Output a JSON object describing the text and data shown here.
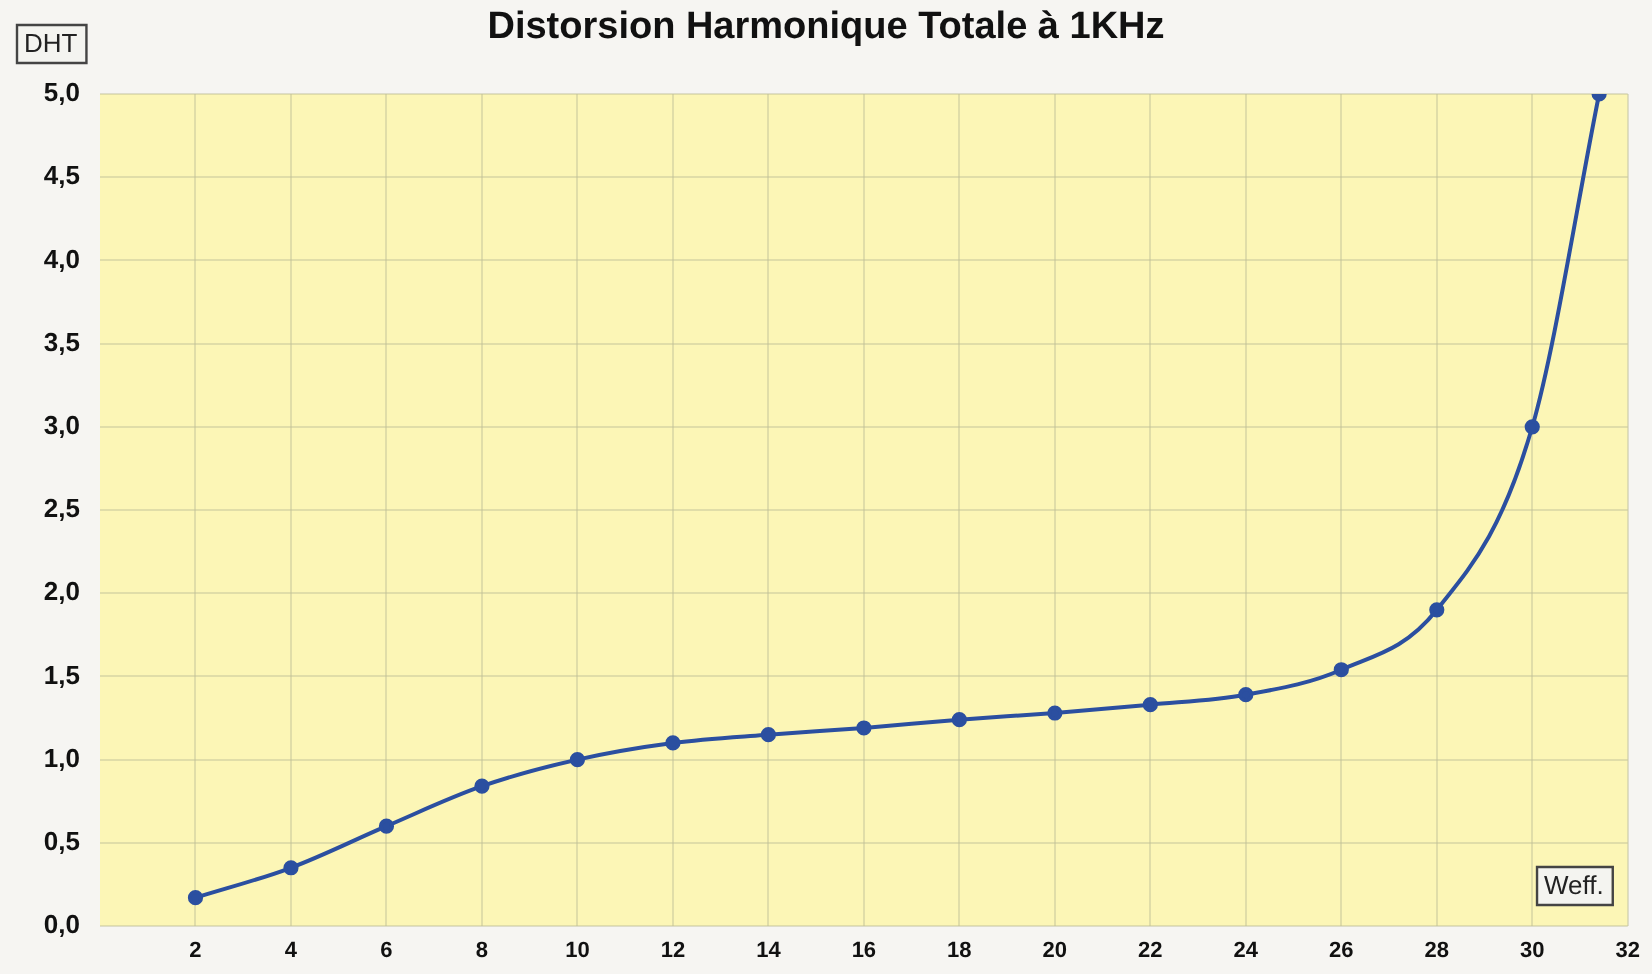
{
  "chart_data": {
    "type": "line",
    "title": "Distorsion Harmonique Totale à 1KHz",
    "xlabel": "Weff.",
    "ylabel": "DHT",
    "x": [
      2,
      4,
      6,
      8,
      10,
      12,
      14,
      16,
      18,
      20,
      22,
      24,
      26,
      28,
      30,
      31.4
    ],
    "values": [
      0.17,
      0.35,
      0.6,
      0.84,
      1.0,
      1.1,
      1.15,
      1.19,
      1.24,
      1.28,
      1.33,
      1.39,
      1.54,
      1.9,
      3.0,
      5.0
    ],
    "color": "#2b4fa0",
    "marker": "circle",
    "line_style": "solid",
    "xlim": [
      0,
      32
    ],
    "xticks": [
      2,
      4,
      6,
      8,
      10,
      12,
      14,
      16,
      18,
      20,
      22,
      24,
      26,
      28,
      30,
      32
    ],
    "ylim": [
      0,
      5
    ],
    "yticks": [
      {
        "value": 0,
        "label": "0,0"
      },
      {
        "value": 0.5,
        "label": "0,5"
      },
      {
        "value": 1,
        "label": "1,0"
      },
      {
        "value": 1.5,
        "label": "1,5"
      },
      {
        "value": 2,
        "label": "2,0"
      },
      {
        "value": 2.5,
        "label": "2,5"
      },
      {
        "value": 3,
        "label": "3,0"
      },
      {
        "value": 3.5,
        "label": "3,5"
      },
      {
        "value": 4,
        "label": "4,0"
      },
      {
        "value": 4.5,
        "label": "4,5"
      },
      {
        "value": 5,
        "label": "5,0"
      }
    ],
    "grid": true
  }
}
